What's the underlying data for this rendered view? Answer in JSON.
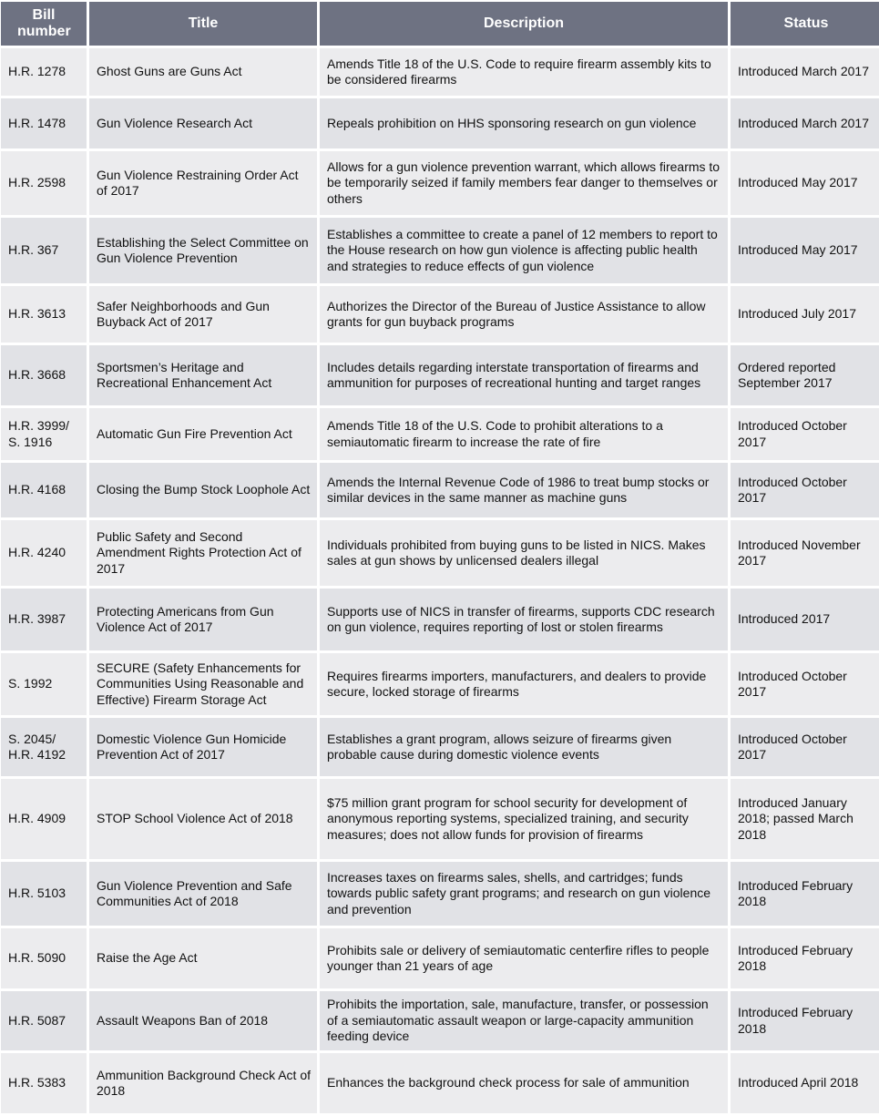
{
  "columns": [
    "Bill number",
    "Title",
    "Description",
    "Status"
  ],
  "rows": [
    {
      "bill": "H.R. 1278",
      "title": "Ghost Guns are Guns Act",
      "description": "Amends Title 18 of the U.S. Code to require firearm assembly kits to be considered firearms",
      "status": "Introduced March 2017"
    },
    {
      "bill": "H.R. 1478",
      "title": "Gun Violence Research Act",
      "description": "Repeals prohibition on HHS sponsoring research on gun violence",
      "status": "Introduced March 2017"
    },
    {
      "bill": "H.R. 2598",
      "title": "Gun Violence Restraining Order Act of 2017",
      "description": "Allows for a gun violence prevention warrant, which allows firearms to be temporarily seized if family members fear danger to themselves or others",
      "status": "Introduced May 2017"
    },
    {
      "bill": "H.R. 367",
      "title": "Establishing the Select Committee on Gun Violence Prevention",
      "description": "Establishes a committee to create a panel of 12 members to report to the House research on how gun violence is affecting public health and strategies to reduce effects of gun violence",
      "status": "Introduced May 2017"
    },
    {
      "bill": "H.R. 3613",
      "title": "Safer Neighborhoods and Gun Buyback Act of 2017",
      "description": "Authorizes the Director of the Bureau of Justice Assistance to allow grants for gun buyback programs",
      "status": "Introduced July 2017"
    },
    {
      "bill": "H.R. 3668",
      "title": "Sportsmen’s Heritage and Recreational Enhancement Act",
      "description": "Includes details regarding interstate transportation of firearms and ammunition for purposes of recreational hunting and target ranges",
      "status": "Ordered reported September 2017"
    },
    {
      "bill": "H.R. 3999/ S. 1916",
      "title": "Automatic Gun Fire Prevention Act",
      "description": "Amends Title 18 of the U.S. Code to prohibit alterations to a semiautomatic firearm to increase the rate of fire",
      "status": "Introduced October 2017"
    },
    {
      "bill": "H.R. 4168",
      "title": "Closing the Bump Stock Loophole Act",
      "description": "Amends the Internal Revenue Code of 1986 to treat bump stocks or similar devices in the same manner as machine guns",
      "status": "Introduced October 2017"
    },
    {
      "bill": "H.R. 4240",
      "title": "Public Safety and Second Amendment Rights Protection Act of 2017",
      "description": "Individuals prohibited from buying guns to be listed in NICS. Makes sales at gun shows by unlicensed dealers illegal",
      "status": "Introduced November 2017"
    },
    {
      "bill": "H.R. 3987",
      "title": "Protecting Americans from Gun Violence Act of 2017",
      "description": "Supports use of NICS in transfer of firearms, supports CDC research on gun violence, requires reporting of lost or stolen firearms",
      "status": "Introduced 2017"
    },
    {
      "bill": "S. 1992",
      "title": "SECURE (Safety Enhancements for Communities Using Reasonable and Effective) Firearm Storage Act",
      "description": "Requires firearms importers, manufacturers, and dealers to provide secure, locked storage of firearms",
      "status": "Introduced October 2017"
    },
    {
      "bill": "S. 2045/ H.R. 4192",
      "title": "Domestic Violence Gun Homicide Prevention Act of 2017",
      "description": "Establishes a grant program, allows seizure of firearms given probable cause during domestic violence events",
      "status": "Introduced October 2017"
    },
    {
      "bill": "H.R. 4909",
      "title": "STOP School Violence Act of 2018",
      "description": "$75 million grant program for school security for development of anonymous reporting systems, specialized training, and security measures; does not allow funds for provision of firearms",
      "status": "Introduced January 2018; passed March 2018"
    },
    {
      "bill": "H.R. 5103",
      "title": "Gun Violence Prevention and Safe Communities Act of 2018",
      "description": "Increases taxes on firearms sales, shells, and cartridges; funds towards public safety grant programs; and research on gun violence and prevention",
      "status": "Introduced February 2018"
    },
    {
      "bill": "H.R. 5090",
      "title": "Raise the Age Act",
      "description": "Prohibits sale or delivery of semiautomatic centerfire rifles to people younger than 21 years of age",
      "status": "Introduced February 2018"
    },
    {
      "bill": "H.R. 5087",
      "title": "Assault Weapons Ban of 2018",
      "description": "Prohibits the importation, sale, manufacture, transfer, or possession of a semiautomatic assault weapon or large-capacity ammunition feeding device",
      "status": "Introduced February 2018"
    },
    {
      "bill": "H.R. 5383",
      "title": "Ammunition Background Check Act of 2018",
      "description": "Enhances the background check process for sale of ammunition",
      "status": "Introduced April 2018"
    }
  ]
}
